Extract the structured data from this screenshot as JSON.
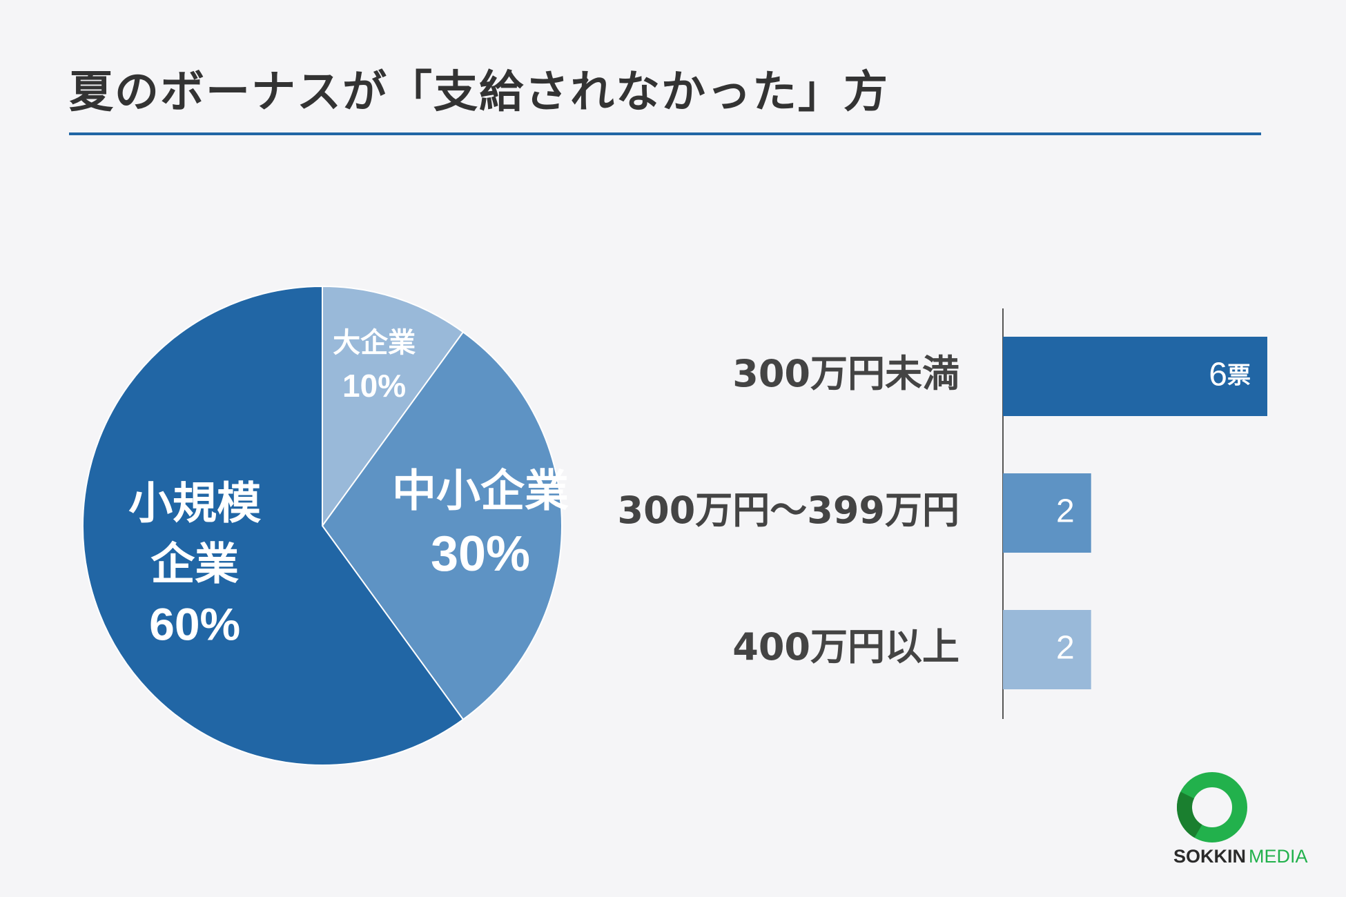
{
  "title": "夏のボーナスが「支給されなかった」方",
  "logo": {
    "text_bold": "SOKKIN",
    "text_light": "MEDIA"
  },
  "colors": {
    "dark": "#2166a5",
    "mid": "#5e93c4",
    "light": "#99b9d9",
    "title": "#333333",
    "rule": "#2166a5",
    "logo_green": "#22b14c"
  },
  "chart_data": [
    {
      "type": "pie",
      "slices": [
        {
          "label": "大企業",
          "value": 10,
          "value_label": "10%",
          "color": "#99b9d9"
        },
        {
          "label": "中小企業",
          "value": 30,
          "value_label": "30%",
          "color": "#5e93c4"
        },
        {
          "label": "小規模企業",
          "label_lines": [
            "小規模",
            "企業"
          ],
          "value": 60,
          "value_label": "60%",
          "color": "#2166a5"
        }
      ]
    },
    {
      "type": "bar",
      "orientation": "horizontal",
      "categories": [
        "300万円未満",
        "300万円～399万円",
        "400万円以上"
      ],
      "values": [
        6,
        2,
        2
      ],
      "data_labels": [
        "6",
        "2",
        "2"
      ],
      "unit": "票",
      "colors": [
        "#2166a5",
        "#5e93c4",
        "#99b9d9"
      ],
      "xlim": [
        0,
        6
      ]
    }
  ]
}
